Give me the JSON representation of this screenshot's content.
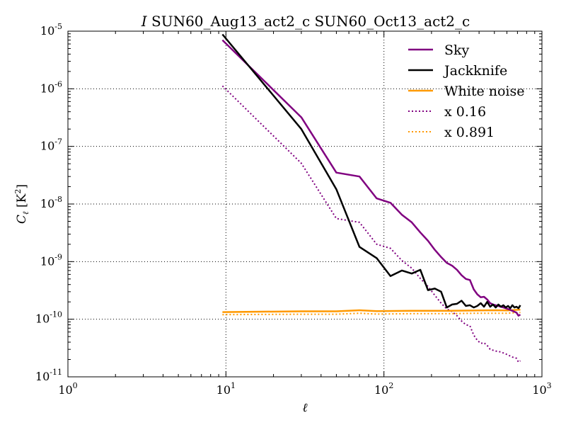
{
  "chart_data": {
    "type": "line",
    "title": {
      "italic_part": "I",
      "rest": " SUN60_Aug13_act2_c SUN60_Oct13_act2_c"
    },
    "xlabel": "ℓ",
    "ylabel": {
      "base": "C",
      "sub": "ℓ",
      "unit_open": " [K",
      "unit_exp": "2",
      "unit_close": "]"
    },
    "x_scale": "log",
    "y_scale": "log",
    "xlim": [
      1,
      1000
    ],
    "ylim": [
      1e-11,
      1e-05
    ],
    "grid": true,
    "grid_style": "dotted",
    "legend_position": "top-right",
    "x_ticks": [
      {
        "value": 1,
        "base": "10",
        "exp": "0"
      },
      {
        "value": 10,
        "base": "10",
        "exp": "1"
      },
      {
        "value": 100,
        "base": "10",
        "exp": "2"
      },
      {
        "value": 1000,
        "base": "10",
        "exp": "3"
      }
    ],
    "y_ticks": [
      {
        "value": 1e-11,
        "base": "10",
        "exp": "-11"
      },
      {
        "value": 1e-10,
        "base": "10",
        "exp": "-10"
      },
      {
        "value": 1e-09,
        "base": "10",
        "exp": "-9"
      },
      {
        "value": 1e-08,
        "base": "10",
        "exp": "-8"
      },
      {
        "value": 1e-07,
        "base": "10",
        "exp": "-7"
      },
      {
        "value": 1e-06,
        "base": "10",
        "exp": "-6"
      },
      {
        "value": 1e-05,
        "base": "10",
        "exp": "-5"
      }
    ],
    "series": [
      {
        "name": "Sky",
        "color": "#800080",
        "style": "solid",
        "points": [
          [
            9.5,
            7e-06
          ],
          [
            30,
            3.2e-07
          ],
          [
            50,
            3.5e-08
          ],
          [
            70,
            3e-08
          ],
          [
            90,
            1.25e-08
          ],
          [
            110,
            1.05e-08
          ],
          [
            130,
            6.5e-09
          ],
          [
            150,
            4.8e-09
          ],
          [
            170,
            3.2e-09
          ],
          [
            190,
            2.3e-09
          ],
          [
            210,
            1.6e-09
          ],
          [
            230,
            1.2e-09
          ],
          [
            250,
            9.5e-10
          ],
          [
            270,
            8.5e-10
          ],
          [
            290,
            7.2e-10
          ],
          [
            310,
            5.8e-10
          ],
          [
            330,
            5e-10
          ],
          [
            350,
            4.8e-10
          ],
          [
            370,
            3.3e-10
          ],
          [
            390,
            2.7e-10
          ],
          [
            410,
            2.4e-10
          ],
          [
            430,
            2.45e-10
          ],
          [
            450,
            2.2e-10
          ],
          [
            470,
            1.9e-10
          ],
          [
            490,
            1.8e-10
          ],
          [
            510,
            1.75e-10
          ],
          [
            530,
            1.7e-10
          ],
          [
            550,
            1.65e-10
          ],
          [
            570,
            1.6e-10
          ],
          [
            590,
            1.55e-10
          ],
          [
            610,
            1.5e-10
          ],
          [
            630,
            1.45e-10
          ],
          [
            650,
            1.4e-10
          ],
          [
            670,
            1.35e-10
          ],
          [
            690,
            1.3e-10
          ],
          [
            710,
            1.15e-10
          ],
          [
            730,
            1.2e-10
          ]
        ]
      },
      {
        "name": "Jackknife",
        "color": "#000000",
        "style": "solid",
        "points": [
          [
            9.5,
            8.8e-06
          ],
          [
            30,
            2e-07
          ],
          [
            50,
            1.8e-08
          ],
          [
            70,
            1.8e-09
          ],
          [
            90,
            1.15e-09
          ],
          [
            110,
            5.6e-10
          ],
          [
            130,
            7e-10
          ],
          [
            150,
            6.2e-10
          ],
          [
            170,
            7.2e-10
          ],
          [
            190,
            3.2e-10
          ],
          [
            210,
            3.4e-10
          ],
          [
            230,
            3e-10
          ],
          [
            250,
            1.6e-10
          ],
          [
            270,
            1.8e-10
          ],
          [
            290,
            1.85e-10
          ],
          [
            310,
            2.1e-10
          ],
          [
            330,
            1.7e-10
          ],
          [
            350,
            1.75e-10
          ],
          [
            370,
            1.6e-10
          ],
          [
            390,
            1.7e-10
          ],
          [
            410,
            1.9e-10
          ],
          [
            430,
            1.65e-10
          ],
          [
            450,
            2e-10
          ],
          [
            470,
            1.65e-10
          ],
          [
            490,
            1.8e-10
          ],
          [
            510,
            1.6e-10
          ],
          [
            530,
            1.8e-10
          ],
          [
            550,
            1.65e-10
          ],
          [
            570,
            1.75e-10
          ],
          [
            590,
            1.6e-10
          ],
          [
            610,
            1.7e-10
          ],
          [
            630,
            1.55e-10
          ],
          [
            650,
            1.75e-10
          ],
          [
            670,
            1.6e-10
          ],
          [
            690,
            1.65e-10
          ],
          [
            710,
            1.55e-10
          ],
          [
            730,
            1.75e-10
          ]
        ]
      },
      {
        "name": "White noise",
        "color": "#FF9900",
        "style": "solid",
        "points": [
          [
            9.5,
            1.33e-10
          ],
          [
            30,
            1.37e-10
          ],
          [
            50,
            1.37e-10
          ],
          [
            70,
            1.43e-10
          ],
          [
            90,
            1.38e-10
          ],
          [
            150,
            1.4e-10
          ],
          [
            250,
            1.4e-10
          ],
          [
            400,
            1.42e-10
          ],
          [
            500,
            1.43e-10
          ],
          [
            600,
            1.42e-10
          ],
          [
            730,
            1.47e-10
          ]
        ]
      },
      {
        "name": "x 0.16",
        "color": "#800080",
        "style": "dotted",
        "points": [
          [
            9.5,
            1.12e-06
          ],
          [
            30,
            5.1e-08
          ],
          [
            50,
            5.6e-09
          ],
          [
            70,
            4.8e-09
          ],
          [
            90,
            2e-09
          ],
          [
            110,
            1.7e-09
          ],
          [
            130,
            1.04e-09
          ],
          [
            150,
            7.7e-10
          ],
          [
            170,
            5.1e-10
          ],
          [
            190,
            3.7e-10
          ],
          [
            210,
            2.6e-10
          ],
          [
            230,
            1.9e-10
          ],
          [
            250,
            1.5e-10
          ],
          [
            270,
            1.36e-10
          ],
          [
            290,
            1.15e-10
          ],
          [
            310,
            9.3e-11
          ],
          [
            330,
            8e-11
          ],
          [
            350,
            7.7e-11
          ],
          [
            370,
            5.3e-11
          ],
          [
            390,
            4.3e-11
          ],
          [
            410,
            3.8e-11
          ],
          [
            430,
            3.9e-11
          ],
          [
            450,
            3.5e-11
          ],
          [
            470,
            3e-11
          ],
          [
            510,
            2.8e-11
          ],
          [
            550,
            2.7e-11
          ],
          [
            590,
            2.5e-11
          ],
          [
            650,
            2.2e-11
          ],
          [
            690,
            2.1e-11
          ],
          [
            710,
            1.8e-11
          ],
          [
            730,
            1.9e-11
          ]
        ]
      },
      {
        "name": "x 0.891",
        "color": "#FF9900",
        "style": "dotted",
        "points": [
          [
            9.5,
            1.2e-10
          ],
          [
            30,
            1.22e-10
          ],
          [
            50,
            1.22e-10
          ],
          [
            70,
            1.27e-10
          ],
          [
            90,
            1.23e-10
          ],
          [
            150,
            1.25e-10
          ],
          [
            250,
            1.25e-10
          ],
          [
            400,
            1.27e-10
          ],
          [
            500,
            1.27e-10
          ],
          [
            600,
            1.27e-10
          ],
          [
            730,
            1.31e-10
          ]
        ]
      }
    ]
  }
}
